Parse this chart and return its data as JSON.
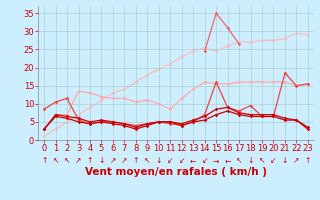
{
  "x": [
    0,
    1,
    2,
    3,
    4,
    5,
    6,
    7,
    8,
    9,
    10,
    11,
    12,
    13,
    14,
    15,
    16,
    17,
    18,
    19,
    20,
    21,
    22,
    23
  ],
  "series": [
    {
      "y": [
        3,
        6.5,
        6,
        5,
        4.5,
        5,
        4.5,
        4,
        3,
        4,
        5,
        5,
        4,
        5,
        5.5,
        7,
        8,
        7,
        6.5,
        6.5,
        6.5,
        5.5,
        5.5,
        3
      ],
      "color": "#cc0000",
      "lw": 0.9,
      "marker": "D",
      "ms": 1.8,
      "zorder": 6
    },
    {
      "y": [
        3,
        7,
        6.5,
        6,
        5,
        5.5,
        5,
        4.5,
        3.5,
        4.5,
        5,
        5,
        4.5,
        5.5,
        6.5,
        8.5,
        9,
        7.5,
        7,
        7,
        7,
        6,
        5.5,
        3.5
      ],
      "color": "#cc0000",
      "lw": 0.9,
      "marker": "D",
      "ms": 1.8,
      "zorder": 5
    },
    {
      "note": "medium red - rafales spike at 15=16, 21=18.5",
      "y": [
        8.5,
        10.5,
        11.5,
        5.5,
        4.5,
        5,
        5,
        4.5,
        4,
        4.5,
        5,
        4.5,
        4,
        5,
        7,
        16,
        9,
        8,
        9.5,
        6.5,
        6.5,
        18.5,
        15,
        15.5
      ],
      "color": "#ee4444",
      "lw": 0.9,
      "marker": "D",
      "ms": 1.8,
      "zorder": 4
    },
    {
      "y": [
        3,
        7,
        7,
        13.5,
        13,
        12,
        11.5,
        11.5,
        10.5,
        11,
        10,
        8.5,
        11.5,
        14,
        16,
        15.5,
        15.5,
        16,
        16,
        16,
        16,
        16,
        15,
        15.5
      ],
      "color": "#ffaaaa",
      "lw": 0.9,
      "marker": "D",
      "ms": 1.8,
      "zorder": 3
    },
    {
      "y": [
        1,
        3,
        5,
        7,
        9,
        11,
        13,
        14,
        16,
        18,
        19.5,
        21,
        23,
        24.5,
        25.5,
        24.5,
        26,
        27,
        27,
        27.5,
        27.5,
        28,
        29.5,
        29
      ],
      "color": "#ffbbbb",
      "lw": 0.9,
      "marker": "D",
      "ms": 1.8,
      "zorder": 2
    },
    {
      "y": [
        null,
        null,
        null,
        null,
        null,
        null,
        null,
        null,
        null,
        null,
        null,
        null,
        null,
        null,
        24.5,
        35,
        31,
        26.5,
        null,
        null,
        null,
        null,
        null,
        null
      ],
      "color": "#ee6666",
      "lw": 0.9,
      "marker": "D",
      "ms": 1.8,
      "zorder": 7
    }
  ],
  "wind_arrows": [
    "↑",
    "↖",
    "↖",
    "↗",
    "↑",
    "↓",
    "↗",
    "↗",
    "↑",
    "↖",
    "↓",
    "↙",
    "↙",
    "←",
    "↙",
    "→",
    "←",
    "↖",
    "↓",
    "↖",
    "↙",
    "↓",
    "↗",
    "↑"
  ],
  "xlabel": "Vent moyen/en rafales ( km/h )",
  "xlim": [
    -0.5,
    23.5
  ],
  "ylim": [
    0,
    37
  ],
  "yticks": [
    0,
    5,
    10,
    15,
    20,
    25,
    30,
    35
  ],
  "xticks": [
    0,
    1,
    2,
    3,
    4,
    5,
    6,
    7,
    8,
    9,
    10,
    11,
    12,
    13,
    14,
    15,
    16,
    17,
    18,
    19,
    20,
    21,
    22,
    23
  ],
  "bg_color": "#cceeff",
  "grid_color": "#aacccc",
  "tick_color": "#cc0000",
  "label_color": "#cc0000",
  "arrow_fontsize": 5.5,
  "xlabel_fontsize": 7.5,
  "tick_fontsize": 6.0
}
